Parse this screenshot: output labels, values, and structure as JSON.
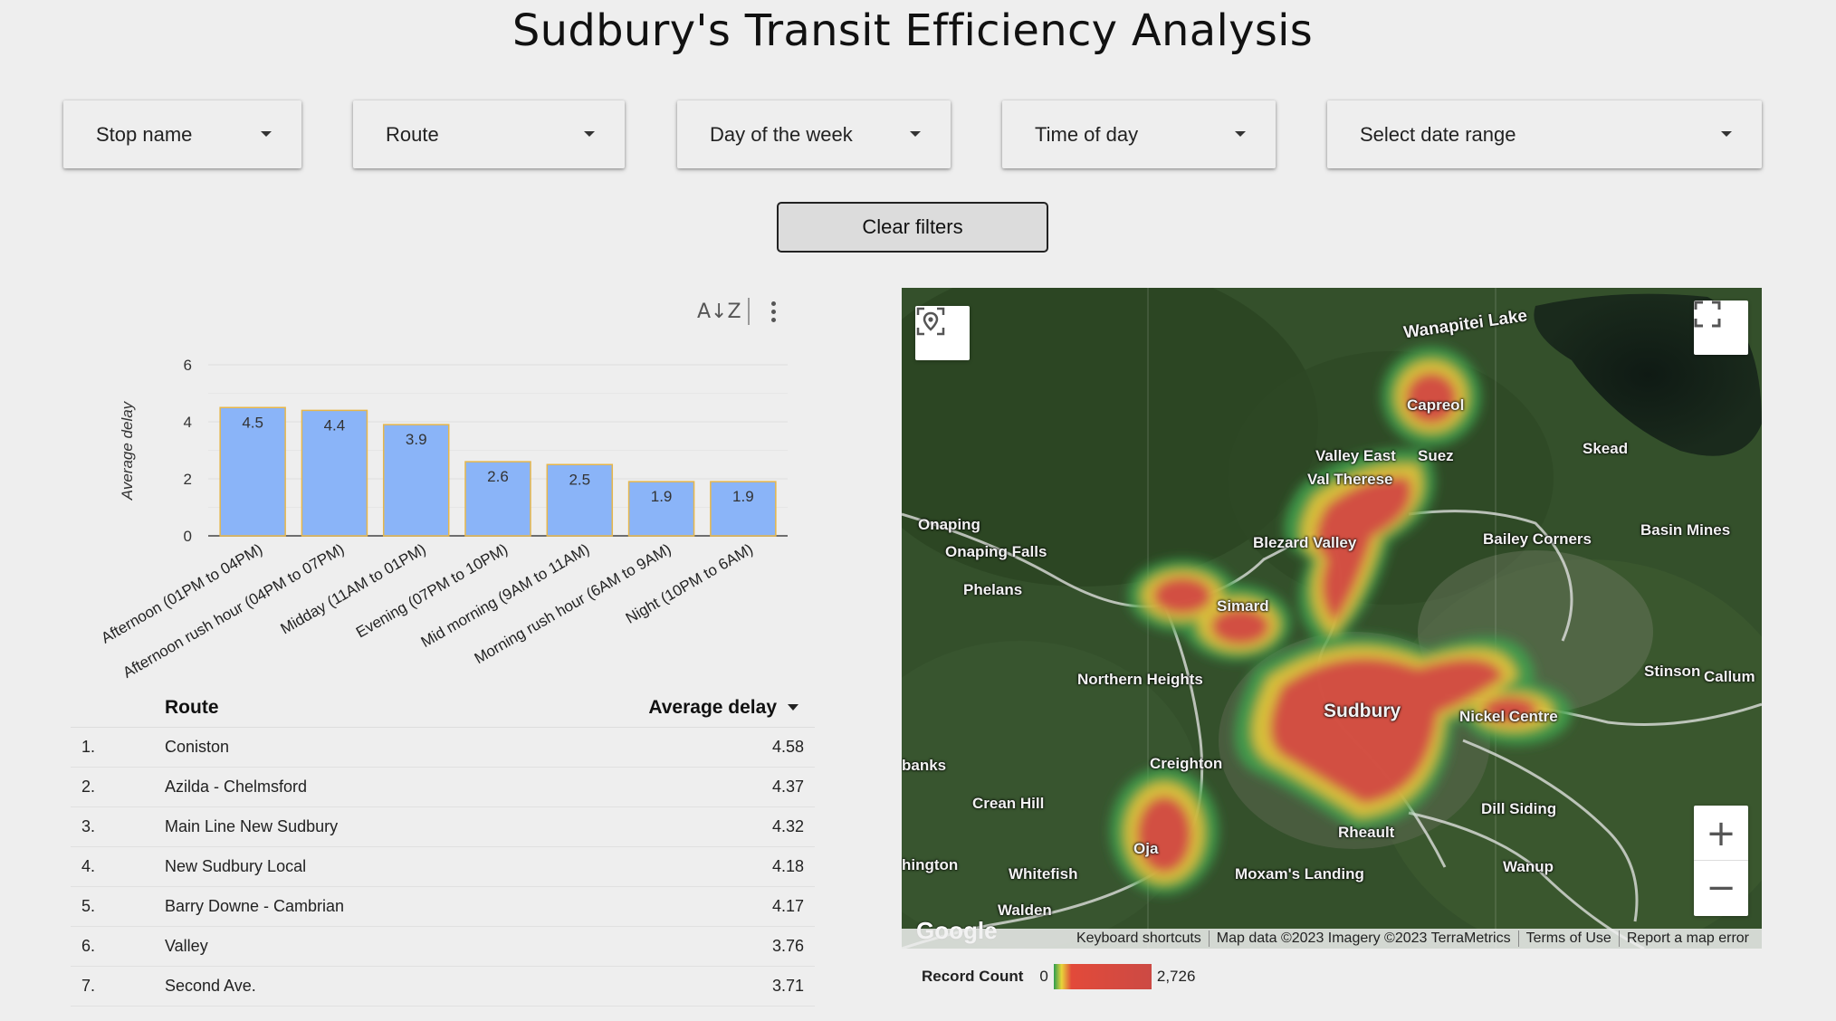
{
  "title": "Sudbury's Transit Efficiency Analysis",
  "filters": [
    {
      "label": "Stop name",
      "name": "stop-name-filter"
    },
    {
      "label": "Route",
      "name": "route-filter"
    },
    {
      "label": "Day of the week",
      "name": "day-of-week-filter"
    },
    {
      "label": "Time of day",
      "name": "time-of-day-filter"
    },
    {
      "label": "Select date range",
      "name": "date-range-filter"
    }
  ],
  "clear_filters_label": "Clear filters",
  "toolbar": {
    "sort_icon": "sort-az-icon",
    "more_icon": "more-vert-icon"
  },
  "chart_data": {
    "type": "bar",
    "categories": [
      "Afternoon (01PM to 04PM)",
      "Afternoon rush hour (04PM to 07PM)",
      "Midday (11AM to 01PM)",
      "Evening (07PM to 10PM)",
      "Mid morning (9AM to 11AM)",
      "Morning rush hour (6AM to 9AM)",
      "Night (10PM to 6AM)"
    ],
    "values": [
      4.5,
      4.4,
      3.9,
      2.6,
      2.5,
      1.9,
      1.9
    ],
    "value_labels": [
      "4.5",
      "4.4",
      "3.9",
      "2.6",
      "2.5",
      "1.9",
      "1.9"
    ],
    "title": "",
    "xlabel": "",
    "ylabel": "Average delay",
    "ylim": [
      0,
      6
    ],
    "yticks": [
      "0",
      "2",
      "4",
      "6"
    ],
    "grid": true,
    "bar_color": "#8ab4f8",
    "bar_edge_color": "#e6b64a"
  },
  "table": {
    "col_route": "Route",
    "col_delay": "Average delay",
    "rows": [
      {
        "idx": "1.",
        "route": "Coniston",
        "delay": "4.58"
      },
      {
        "idx": "2.",
        "route": "Azilda - Chelmsford",
        "delay": "4.37"
      },
      {
        "idx": "3.",
        "route": "Main Line New Sudbury",
        "delay": "4.32"
      },
      {
        "idx": "4.",
        "route": "New Sudbury Local",
        "delay": "4.18"
      },
      {
        "idx": "5.",
        "route": "Barry Downe - Cambrian",
        "delay": "4.17"
      },
      {
        "idx": "6.",
        "route": "Valley",
        "delay": "3.76"
      },
      {
        "idx": "7.",
        "route": "Second Ave.",
        "delay": "3.71"
      }
    ]
  },
  "map": {
    "places": {
      "wanapitei": "Wanapitei Lake",
      "capreol": "Capreol",
      "skead": "Skead",
      "valley_east": "Valley East",
      "suez": "Suez",
      "val_therese": "Val Therese",
      "onaping": "Onaping",
      "onaping_falls": "Onaping Falls",
      "blezard_valley": "Blezard Valley",
      "bailey_corners": "Bailey Corners",
      "basin_mines": "Basin Mines",
      "phelans": "Phelans",
      "simard": "Simard",
      "northern_heights": "Northern Heights",
      "sudbury": "Sudbury",
      "stinson": "Stinson",
      "callum": "Callum",
      "nickel_centre": "Nickel Centre",
      "banks": "banks",
      "creighton": "Creighton",
      "crean_hill": "Crean Hill",
      "dill_siding": "Dill Siding",
      "rheault": "Rheault",
      "ojai": "Oja",
      "whitefish": "Whitefish",
      "moxams_landing": "Moxam's Landing",
      "wanup": "Wanup",
      "hington": "hington",
      "walden": "Walden"
    },
    "google_logo": "Google",
    "footer": [
      "Keyboard shortcuts",
      "Map data ©2023 Imagery ©2023 TerraMetrics",
      "Terms of Use",
      "Report a map error"
    ],
    "buttons": {
      "locate": "locate-icon",
      "fullscreen": "fullscreen-icon",
      "zoom_in": "+",
      "zoom_out": "−"
    }
  },
  "legend": {
    "title": "Record Count",
    "min": "0",
    "max": "2,726"
  }
}
